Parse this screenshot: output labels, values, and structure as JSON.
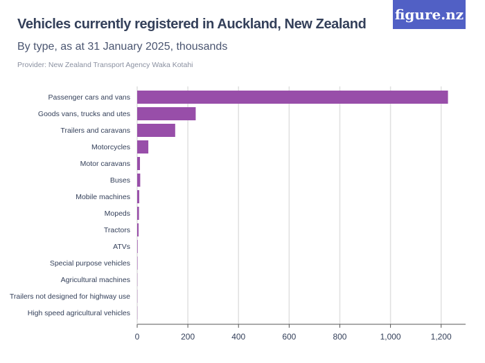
{
  "title": "Vehicles currently registered in Auckland, New Zealand",
  "subtitle": "By type, as at 31 January 2025, thousands",
  "provider": "Provider: New Zealand Transport Agency Waka Kotahi",
  "logo": "figure.nz",
  "colors": {
    "bar": "#984ea9",
    "logo_bg": "#5160c5"
  },
  "chart_data": {
    "type": "bar",
    "orientation": "horizontal",
    "categories": [
      "Passenger cars and vans",
      "Goods vans, trucks and utes",
      "Trailers and caravans",
      "Motorcycles",
      "Motor caravans",
      "Buses",
      "Mobile machines",
      "Mopeds",
      "Tractors",
      "ATVs",
      "Special purpose vehicles",
      "Agricultural machines",
      "Trailers not designed for highway use",
      "High speed agricultural vehicles"
    ],
    "values": [
      1227,
      231,
      150,
      44,
      11,
      12,
      8,
      7,
      5.5,
      2,
      1.5,
      0.5,
      0.3,
      0.1
    ],
    "xlim": [
      0,
      1300
    ],
    "xticks": [
      0,
      200,
      400,
      600,
      800,
      1000,
      1200
    ],
    "xtick_labels": [
      "0",
      "200",
      "400",
      "600",
      "800",
      "1,000",
      "1,200"
    ],
    "grid": true
  }
}
